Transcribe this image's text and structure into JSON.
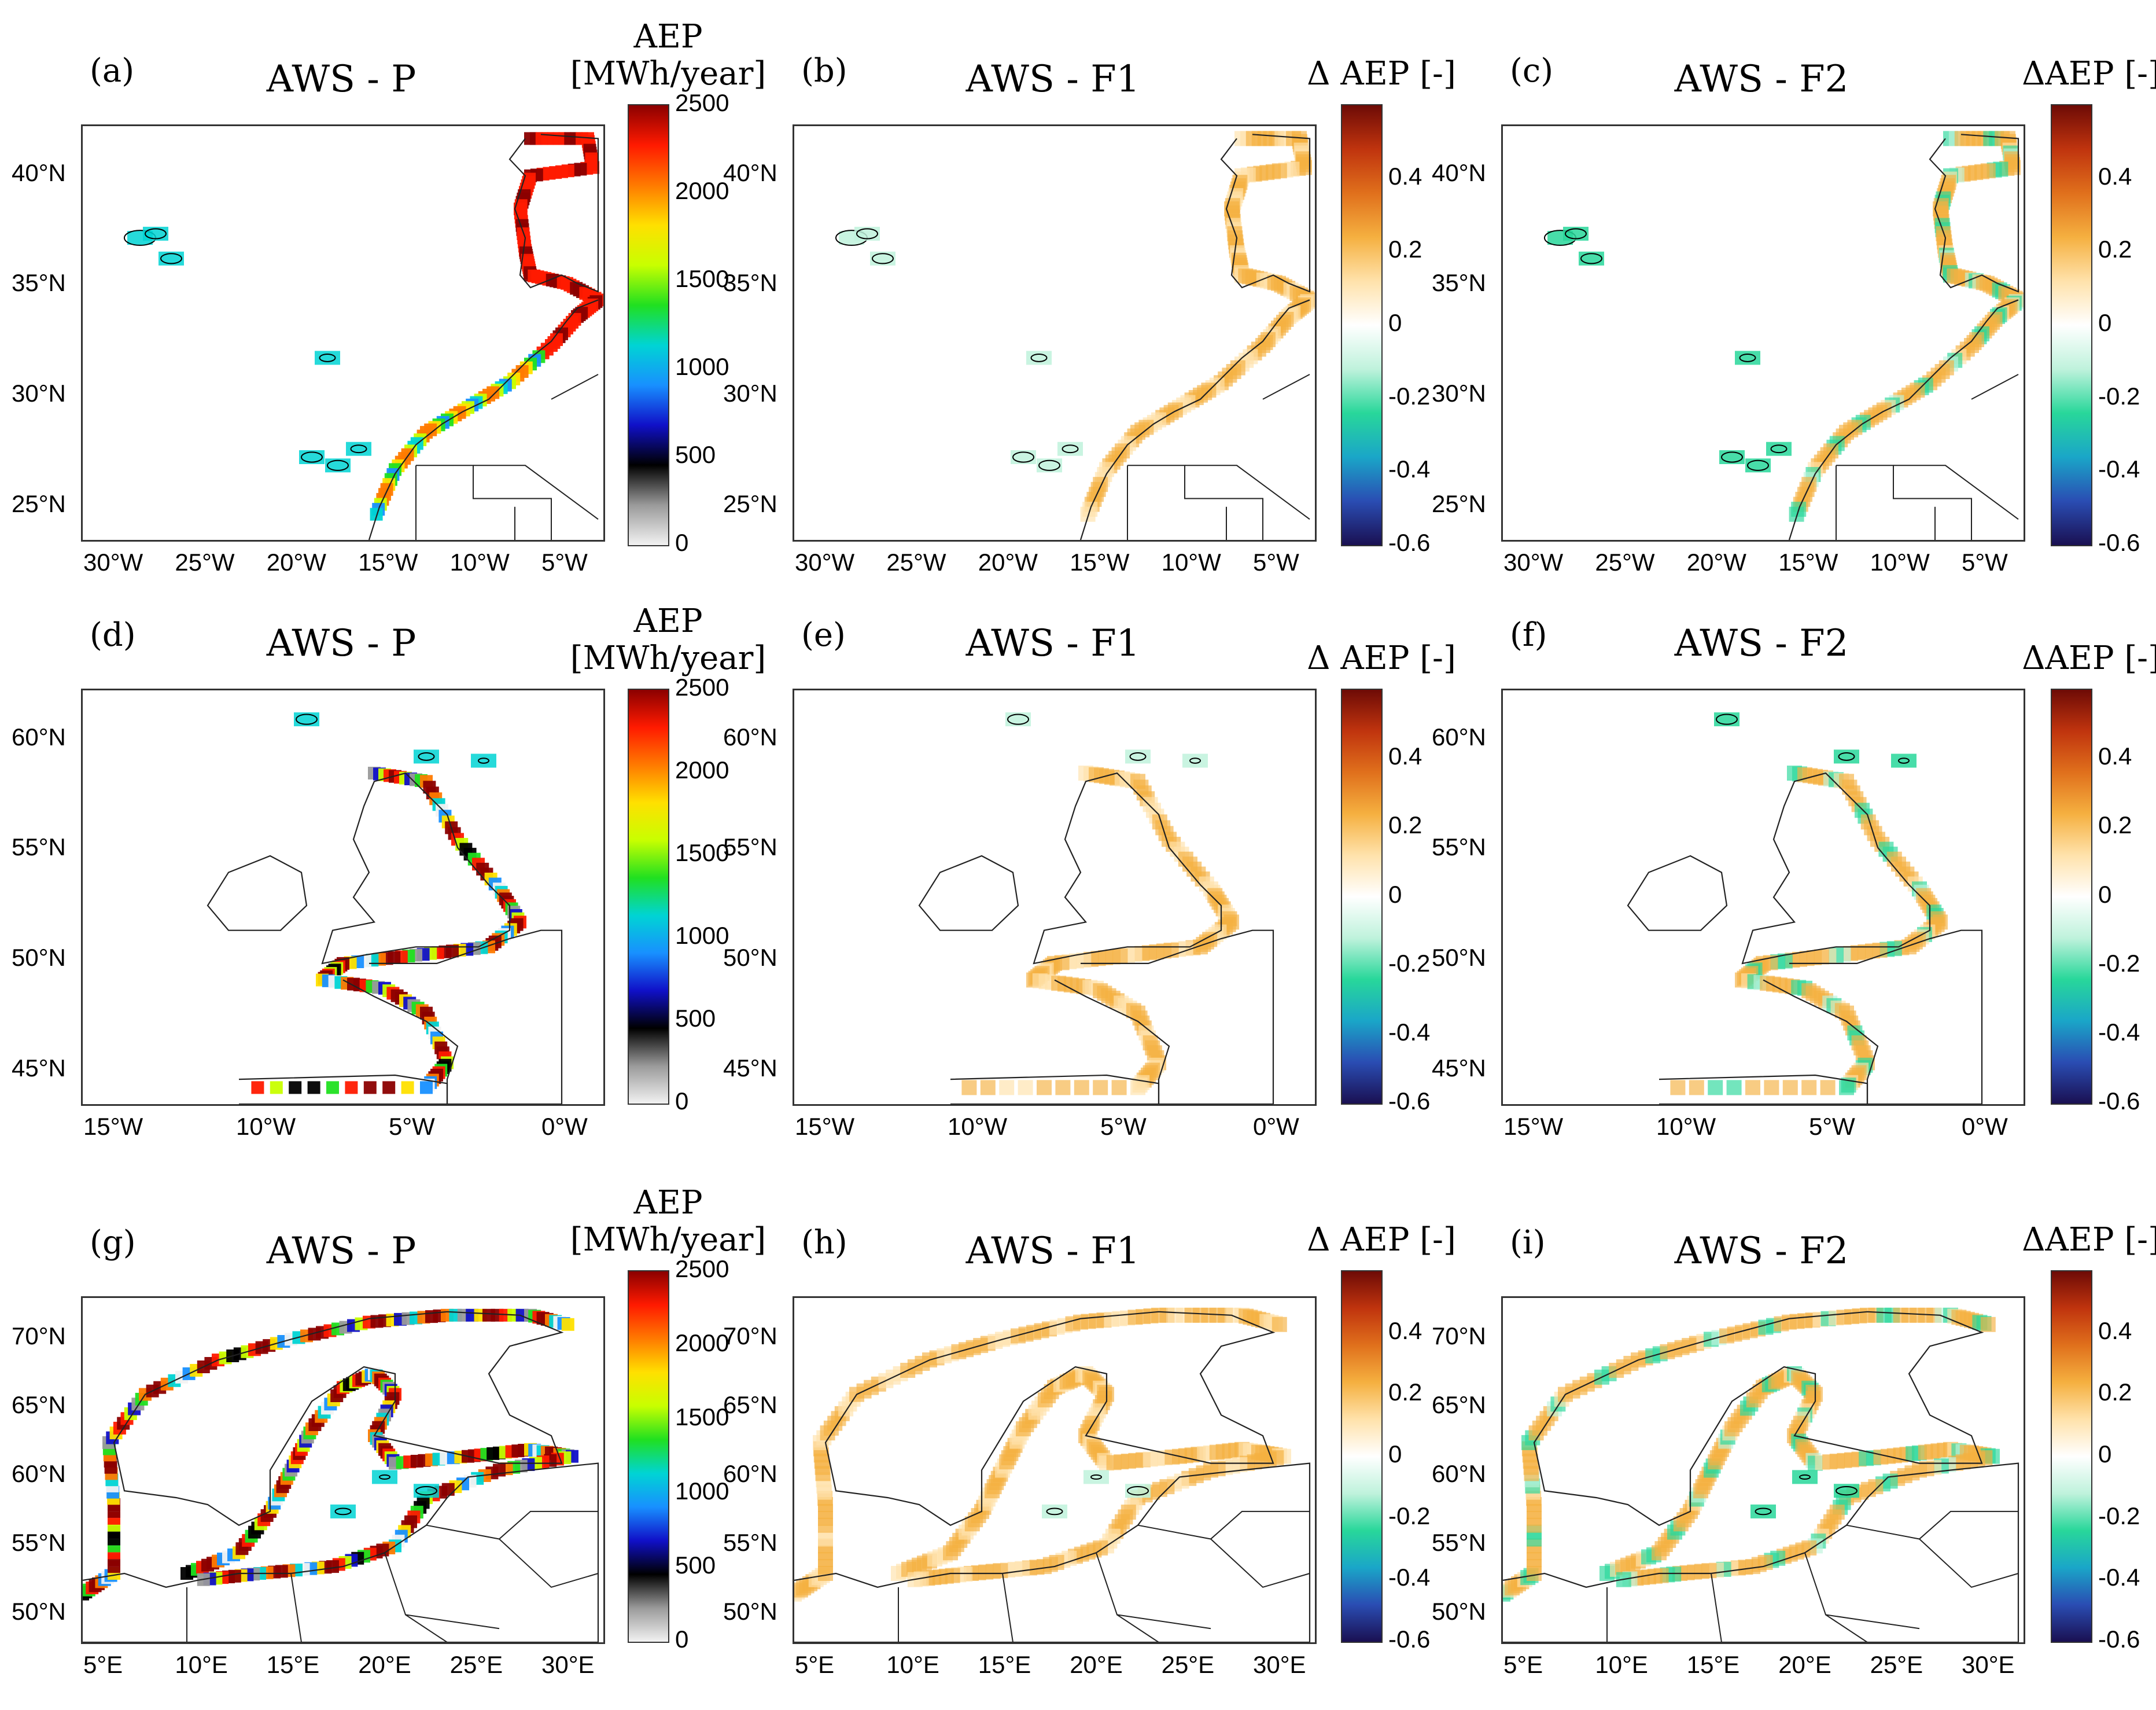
{
  "panels": [
    {
      "id": "a",
      "label": "(a)",
      "title": "AWS - P",
      "kind": "P",
      "region": "iberia",
      "x": {
        "labels": [
          "30°W",
          "25°W",
          "20°W",
          "15°W",
          "10°W",
          "5°W"
        ]
      },
      "y": {
        "labels": [
          "25°N",
          "30°N",
          "35°N",
          "40°N"
        ]
      },
      "cb_title": "AEP\n[MWh/year]",
      "cb_ticks": [
        "0",
        "500",
        "1000",
        "1500",
        "2000",
        "2500"
      ]
    },
    {
      "id": "b",
      "label": "(b)",
      "title": "AWS - F1",
      "kind": "F1",
      "region": "iberia",
      "x": {
        "labels": [
          "30°W",
          "25°W",
          "20°W",
          "15°W",
          "10°W",
          "5°W"
        ]
      },
      "y": {
        "labels": [
          "25°N",
          "30°N",
          "35°N",
          "40°N"
        ]
      },
      "cb_title": "Δ AEP [-]",
      "cb_ticks": [
        "-0.6",
        "-0.4",
        "-0.2",
        "0",
        "0.2",
        "0.4"
      ]
    },
    {
      "id": "c",
      "label": "(c)",
      "title": "AWS - F2",
      "kind": "F2",
      "region": "iberia",
      "x": {
        "labels": [
          "30°W",
          "25°W",
          "20°W",
          "15°W",
          "10°W",
          "5°W"
        ]
      },
      "y": {
        "labels": [
          "25°N",
          "30°N",
          "35°N",
          "40°N"
        ]
      },
      "cb_title": "ΔAEP [-]",
      "cb_ticks": [
        "-0.6",
        "-0.4",
        "-0.2",
        "0",
        "0.2",
        "0.4"
      ]
    },
    {
      "id": "d",
      "label": "(d)",
      "title": "AWS - P",
      "kind": "P",
      "region": "britain",
      "x": {
        "labels": [
          "15°W",
          "10°W",
          "5°W",
          "0°W"
        ]
      },
      "y": {
        "labels": [
          "45°N",
          "50°N",
          "55°N",
          "60°N"
        ]
      },
      "cb_title": "AEP\n[MWh/year]",
      "cb_ticks": [
        "0",
        "500",
        "1000",
        "1500",
        "2000",
        "2500"
      ]
    },
    {
      "id": "e",
      "label": "(e)",
      "title": "AWS - F1",
      "kind": "F1",
      "region": "britain",
      "x": {
        "labels": [
          "15°W",
          "10°W",
          "5°W",
          "0°W"
        ]
      },
      "y": {
        "labels": [
          "45°N",
          "50°N",
          "55°N",
          "60°N"
        ]
      },
      "cb_title": "Δ AEP [-]",
      "cb_ticks": [
        "-0.6",
        "-0.4",
        "-0.2",
        "0",
        "0.2",
        "0.4"
      ]
    },
    {
      "id": "f",
      "label": "(f)",
      "title": "AWS - F2",
      "kind": "F2",
      "region": "britain",
      "x": {
        "labels": [
          "15°W",
          "10°W",
          "5°W",
          "0°W"
        ]
      },
      "y": {
        "labels": [
          "45°N",
          "50°N",
          "55°N",
          "60°N"
        ]
      },
      "cb_title": "ΔAEP [-]",
      "cb_ticks": [
        "-0.6",
        "-0.4",
        "-0.2",
        "0",
        "0.2",
        "0.4"
      ]
    },
    {
      "id": "g",
      "label": "(g)",
      "title": "AWS - P",
      "kind": "P",
      "region": "baltic",
      "x": {
        "labels": [
          "5°E",
          "10°E",
          "15°E",
          "20°E",
          "25°E",
          "30°E"
        ]
      },
      "y": {
        "labels": [
          "50°N",
          "55°N",
          "60°N",
          "65°N",
          "70°N"
        ]
      },
      "cb_title": "AEP\n[MWh/year]",
      "cb_ticks": [
        "0",
        "500",
        "1000",
        "1500",
        "2000",
        "2500"
      ]
    },
    {
      "id": "h",
      "label": "(h)",
      "title": "AWS - F1",
      "kind": "F1",
      "region": "baltic",
      "x": {
        "labels": [
          "5°E",
          "10°E",
          "15°E",
          "20°E",
          "25°E",
          "30°E"
        ]
      },
      "y": {
        "labels": [
          "50°N",
          "55°N",
          "60°N",
          "65°N",
          "70°N"
        ]
      },
      "cb_title": "Δ AEP [-]",
      "cb_ticks": [
        "-0.6",
        "-0.4",
        "-0.2",
        "0",
        "0.2",
        "0.4"
      ]
    },
    {
      "id": "i",
      "label": "(i)",
      "title": "AWS - F2",
      "kind": "F2",
      "region": "baltic",
      "x": {
        "labels": [
          "5°E",
          "10°E",
          "15°E",
          "20°E",
          "25°E",
          "30°E"
        ]
      },
      "y": {
        "labels": [
          "50°N",
          "55°N",
          "60°N",
          "65°N",
          "70°N"
        ]
      },
      "cb_title": "ΔAEP [-]",
      "cb_ticks": [
        "-0.6",
        "-0.4",
        "-0.2",
        "0",
        "0.2",
        "0.4"
      ]
    }
  ],
  "colormaps": {
    "aep": [
      "#f2f2f2",
      "#9a9a9a",
      "#000000",
      "#1010c8",
      "#1890ff",
      "#00d4d4",
      "#20e020",
      "#c8ff00",
      "#ffe000",
      "#ff7a00",
      "#ff1a00",
      "#8b0000"
    ],
    "delta": [
      "#1a1052",
      "#2a4db3",
      "#1aa6c8",
      "#28d79a",
      "#bff2dc",
      "#ffffff",
      "#ffe2ab",
      "#f5b040",
      "#e0701c",
      "#c0340e",
      "#6e0b06"
    ]
  }
}
